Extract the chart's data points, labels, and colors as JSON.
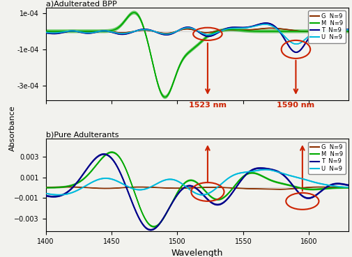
{
  "x_range": [
    1400,
    1630
  ],
  "panel_a_title": "a)Adulterated BPP",
  "panel_b_title": "b)Pure Adulterants",
  "xlabel": "Wavelength",
  "ylabel": "Absorbance",
  "legend_labels": [
    "G  N=9",
    "M  N=9",
    "T  N=9",
    "U  N=9"
  ],
  "colors": {
    "G": "#8B3000",
    "M": "#00AA00",
    "T": "#00008B",
    "U": "#00BBDD"
  },
  "annotation_color": "#CC2200",
  "annotation_1523": "1523 nm",
  "annotation_1590": "1590 nm",
  "panel_a_ylim": [
    -0.00038,
    0.00013
  ],
  "panel_b_ylim": [
    -0.0042,
    0.0047
  ],
  "background_color": "#f2f2ee",
  "panel_a_yticks": [
    -0.0003,
    -0.0001,
    0.0001
  ],
  "panel_b_yticks": [
    -0.003,
    -0.001,
    0.001,
    0.003
  ]
}
